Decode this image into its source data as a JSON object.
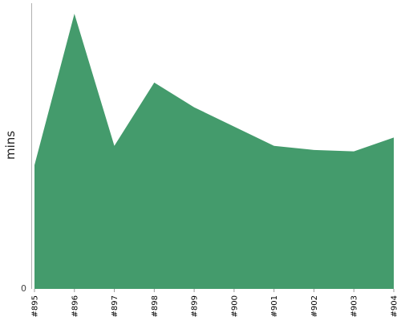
{
  "chart_data": {
    "type": "area",
    "title": "",
    "xlabel": "",
    "ylabel": "mins",
    "categories": [
      "#895",
      "#896",
      "#897",
      "#898",
      "#899",
      "#900",
      "#901",
      "#902",
      "#903",
      "#904"
    ],
    "series": [
      {
        "values": [
          4.5,
          10.0,
          5.2,
          7.5,
          6.6,
          5.9,
          5.2,
          5.05,
          5.0,
          5.5
        ]
      }
    ],
    "ylim": [
      0,
      10.5
    ],
    "y_ticks": [
      {
        "value": 0,
        "label": "0"
      }
    ],
    "grid": false,
    "fill_color": "#449b6c"
  }
}
